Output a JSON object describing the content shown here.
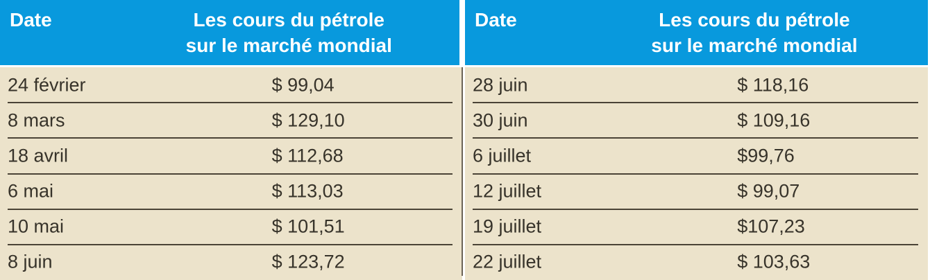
{
  "colors": {
    "header_bg": "#0899dd",
    "header_text": "#ffffff",
    "body_bg": "#ece3cb",
    "body_text": "#37332a",
    "row_line": "#4a4336",
    "divider_line": "#6b6356",
    "page_bg": "#ffffff"
  },
  "tables": [
    {
      "header": {
        "date_label": "Date",
        "price_label_line1": "Les cours du pétrole",
        "price_label_line2": "sur le marché mondial"
      },
      "rows": [
        {
          "date": "24 février",
          "price": "$ 99,04"
        },
        {
          "date": "8 mars",
          "price": "$ 129,10"
        },
        {
          "date": "18 avril",
          "price": "$ 112,68"
        },
        {
          "date": "6 mai",
          "price": "$ 113,03"
        },
        {
          "date": "10 mai",
          "price": "$ 101,51"
        },
        {
          "date": "8 juin",
          "price": "$ 123,72"
        }
      ]
    },
    {
      "header": {
        "date_label": "Date",
        "price_label_line1": "Les cours du pétrole",
        "price_label_line2": "sur le marché mondial"
      },
      "rows": [
        {
          "date": "28 juin",
          "price": "$ 118,16"
        },
        {
          "date": "30 juin",
          "price": "$ 109,16"
        },
        {
          "date": "6 juillet",
          "price": "$99,76"
        },
        {
          "date": "12 juillet",
          "price": "$ 99,07"
        },
        {
          "date": "19 juillet",
          "price": "$107,23"
        },
        {
          "date": "22 juillet",
          "price": "$ 103,63"
        }
      ]
    }
  ]
}
